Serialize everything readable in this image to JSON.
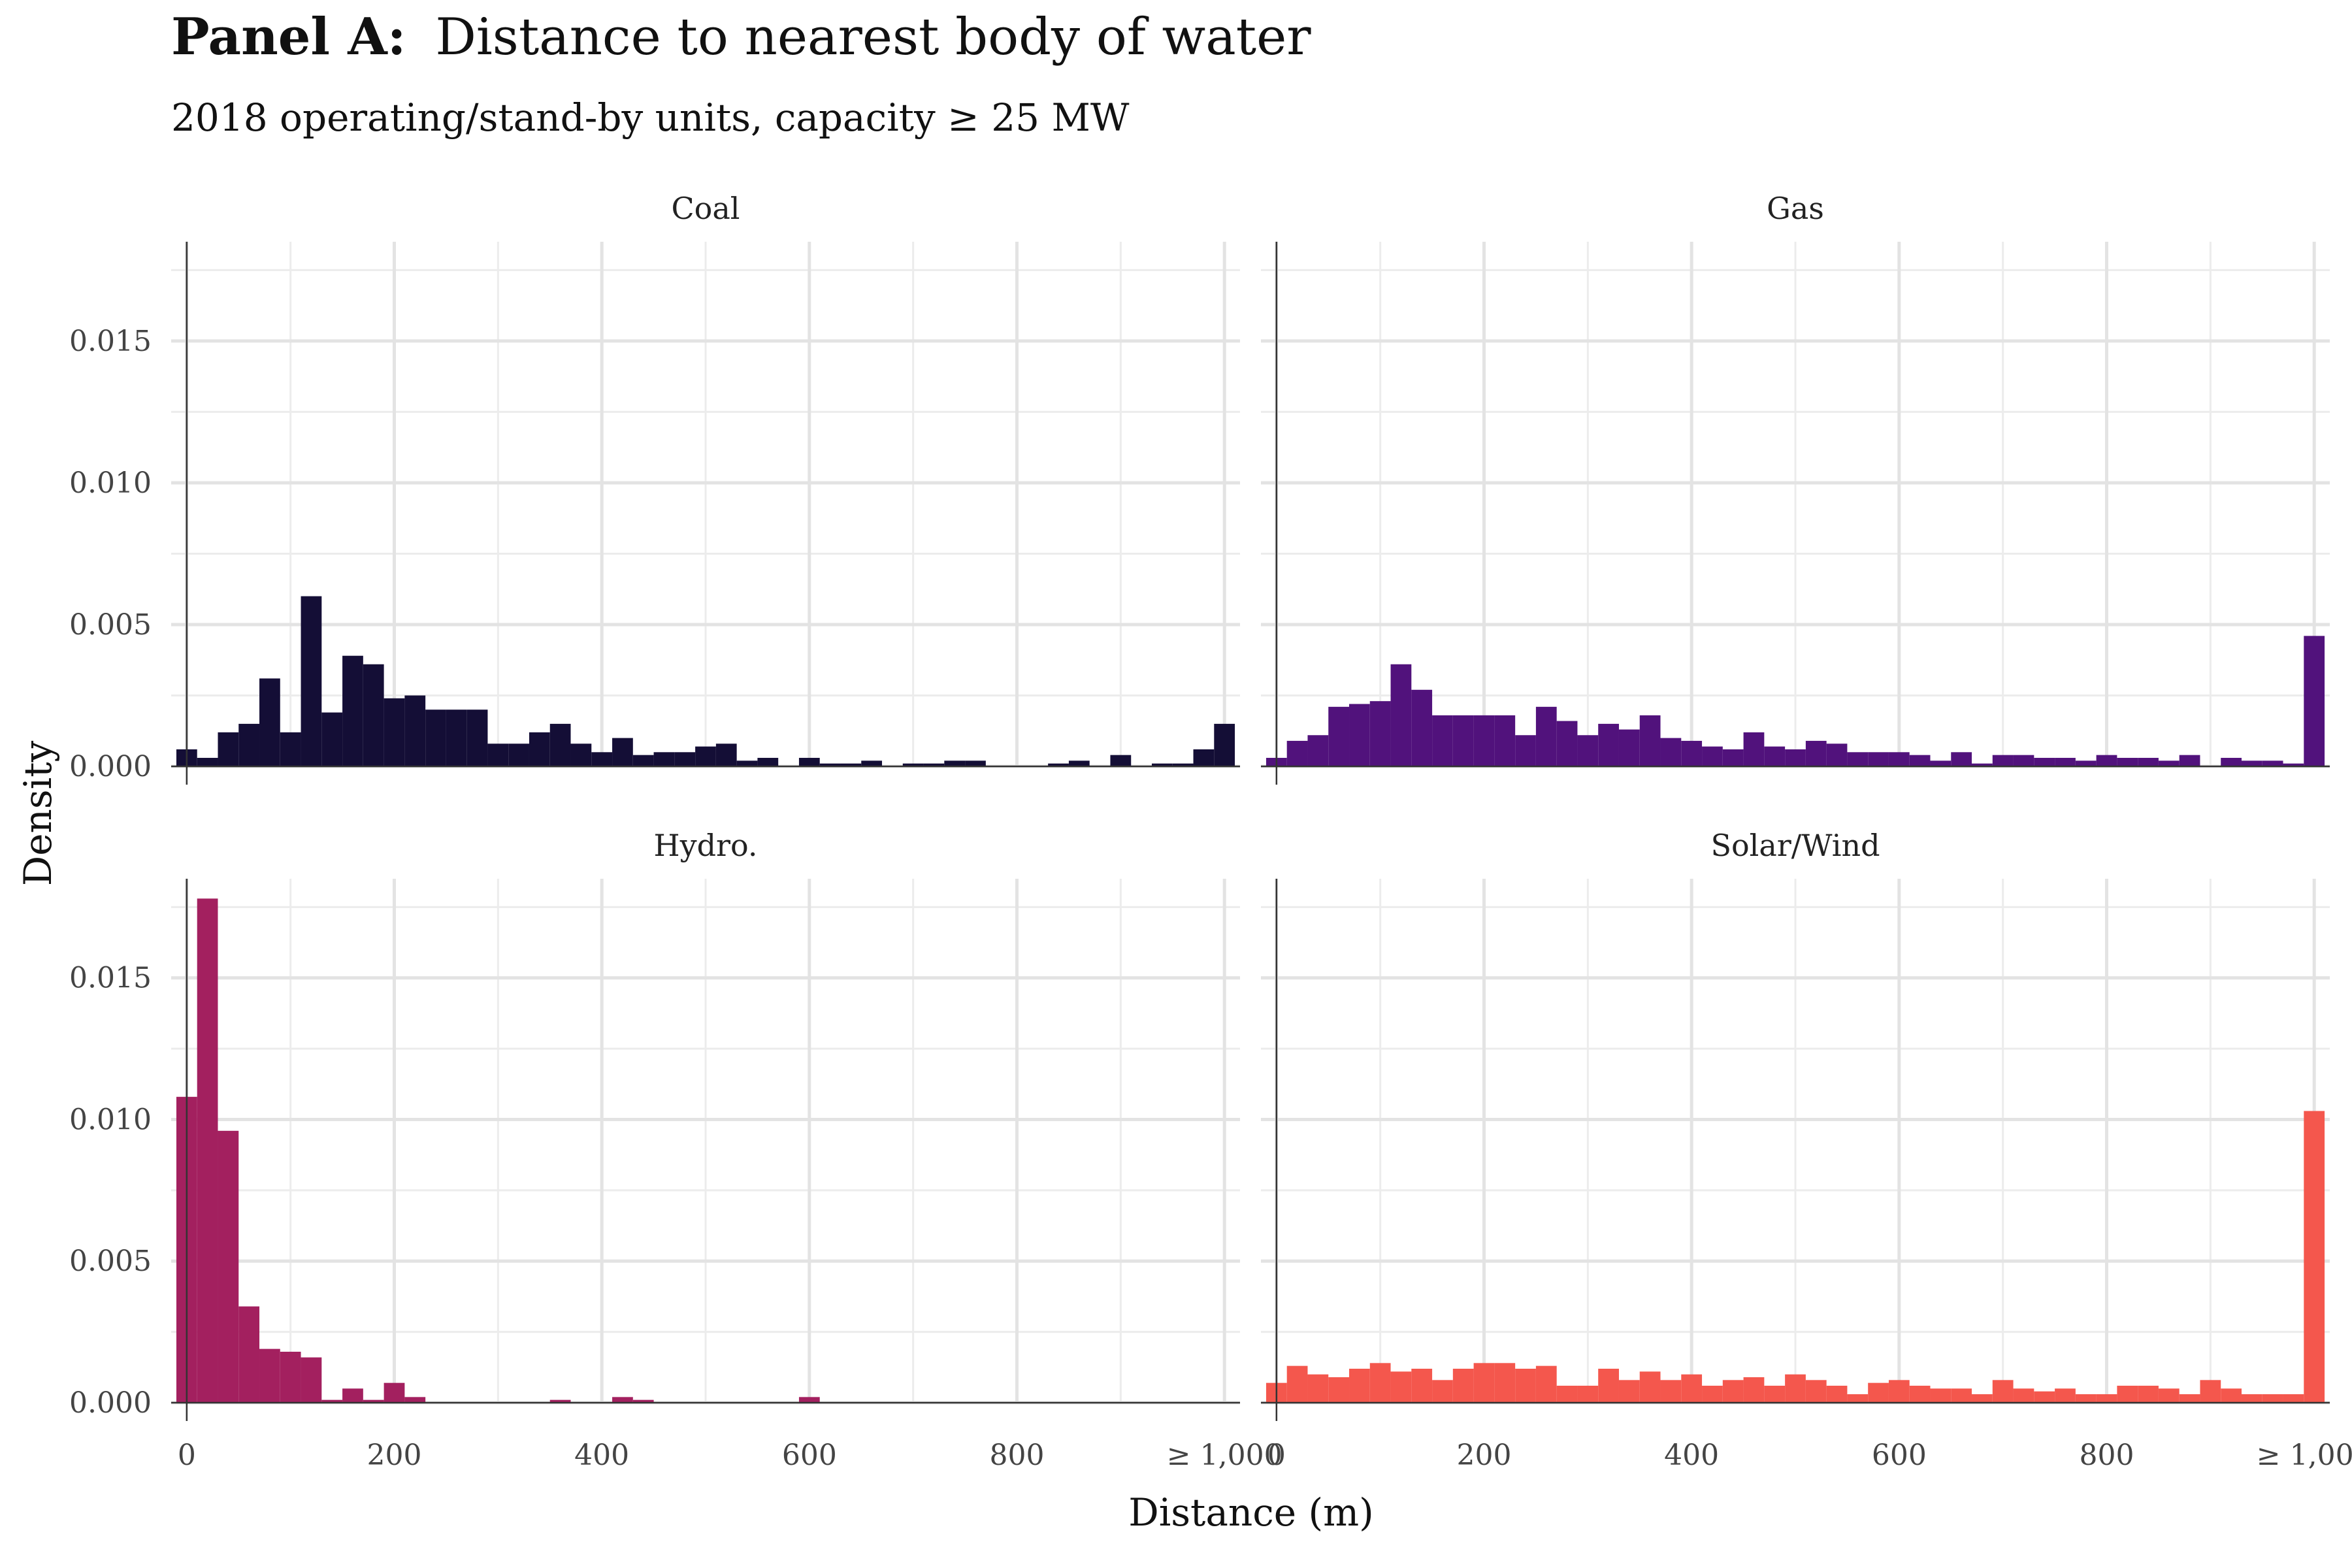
{
  "chart_data": {
    "type": "bar",
    "title_bold": "Panel A:",
    "title_rest": "Distance to nearest body of water",
    "subtitle": "2018 operating/stand-by units, capacity  ≥ 25 MW",
    "xlabel": "Distance (m)",
    "ylabel": "Density",
    "xlim": [
      -15,
      1015
    ],
    "ylim": [
      0,
      0.0185
    ],
    "x_ticks": [
      0,
      200,
      400,
      600,
      800,
      1000
    ],
    "x_tick_labels": [
      "0",
      "200",
      "400",
      "600",
      "800",
      "≥ 1,000"
    ],
    "y_ticks": [
      0,
      0.005,
      0.01,
      0.015
    ],
    "y_tick_labels": [
      "0.000",
      "0.005",
      "0.010",
      "0.015"
    ],
    "bin_width": 20,
    "bin_starts": [
      -10,
      10,
      30,
      50,
      70,
      90,
      110,
      130,
      150,
      170,
      190,
      210,
      230,
      250,
      270,
      290,
      310,
      330,
      350,
      370,
      390,
      410,
      430,
      450,
      470,
      490,
      510,
      530,
      550,
      570,
      590,
      610,
      630,
      650,
      670,
      690,
      710,
      730,
      750,
      770,
      790,
      810,
      830,
      850,
      870,
      890,
      910,
      930,
      950,
      970,
      990
    ],
    "grid": true,
    "legend": "none",
    "series": [
      {
        "name": "Coal",
        "color": "#140e36",
        "values": [
          0.0006,
          0.0003,
          0.0012,
          0.0015,
          0.0031,
          0.0012,
          0.006,
          0.0019,
          0.0039,
          0.0036,
          0.0024,
          0.0025,
          0.002,
          0.002,
          0.002,
          0.0008,
          0.0008,
          0.0012,
          0.0015,
          0.0008,
          0.0005,
          0.001,
          0.0004,
          0.0005,
          0.0005,
          0.0007,
          0.0008,
          0.0002,
          0.0003,
          0,
          0.0003,
          0.0001,
          0.0001,
          0.0002,
          0,
          0.0001,
          0.0001,
          0.0002,
          0.0002,
          0,
          0,
          0,
          0.0001,
          0.0002,
          0,
          0.0004,
          0,
          0.0001,
          0.0001,
          0.0006,
          0.0015
        ]
      },
      {
        "name": "Gas",
        "color": "#51127c",
        "values": [
          0.0003,
          0.0009,
          0.0011,
          0.0021,
          0.0022,
          0.0023,
          0.0036,
          0.0027,
          0.0018,
          0.0018,
          0.0018,
          0.0018,
          0.0011,
          0.0021,
          0.0016,
          0.0011,
          0.0015,
          0.0013,
          0.0018,
          0.001,
          0.0009,
          0.0007,
          0.0006,
          0.0012,
          0.0007,
          0.0006,
          0.0009,
          0.0008,
          0.0005,
          0.0005,
          0.0005,
          0.0004,
          0.0002,
          0.0005,
          0.0001,
          0.0004,
          0.0004,
          0.0003,
          0.0003,
          0.0002,
          0.0004,
          0.0003,
          0.0003,
          0.0002,
          0.0004,
          0,
          0.0003,
          0.0002,
          0.0002,
          0.0001,
          0.0046
        ]
      },
      {
        "name": "Hydro.",
        "color": "#a3205f",
        "values": [
          0.0108,
          0.0178,
          0.0096,
          0.0034,
          0.0019,
          0.0018,
          0.0016,
          0.0001,
          0.0005,
          0.0001,
          0.0007,
          0.0002,
          0,
          0,
          0,
          0,
          0,
          0,
          0.0001,
          0,
          0,
          0.0002,
          0.0001,
          0,
          0,
          0,
          0,
          0,
          0,
          0,
          0.0002,
          0,
          0,
          0,
          0,
          0,
          0,
          0,
          0,
          0,
          0,
          0,
          0,
          0,
          0,
          0,
          0,
          0,
          0,
          0,
          0
        ]
      },
      {
        "name": "Solar/Wind",
        "color": "#f4574d",
        "values": [
          0.0007,
          0.0013,
          0.001,
          0.0009,
          0.0012,
          0.0014,
          0.0011,
          0.0012,
          0.0008,
          0.0012,
          0.0014,
          0.0014,
          0.0012,
          0.0013,
          0.0006,
          0.0006,
          0.0012,
          0.0008,
          0.0011,
          0.0008,
          0.001,
          0.0006,
          0.0008,
          0.0009,
          0.0006,
          0.001,
          0.0008,
          0.0006,
          0.0003,
          0.0007,
          0.0008,
          0.0006,
          0.0005,
          0.0005,
          0.0003,
          0.0008,
          0.0005,
          0.0004,
          0.0005,
          0.0003,
          0.0003,
          0.0006,
          0.0006,
          0.0005,
          0.0003,
          0.0008,
          0.0005,
          0.0003,
          0.0003,
          0.0003,
          0.0103
        ]
      }
    ]
  }
}
